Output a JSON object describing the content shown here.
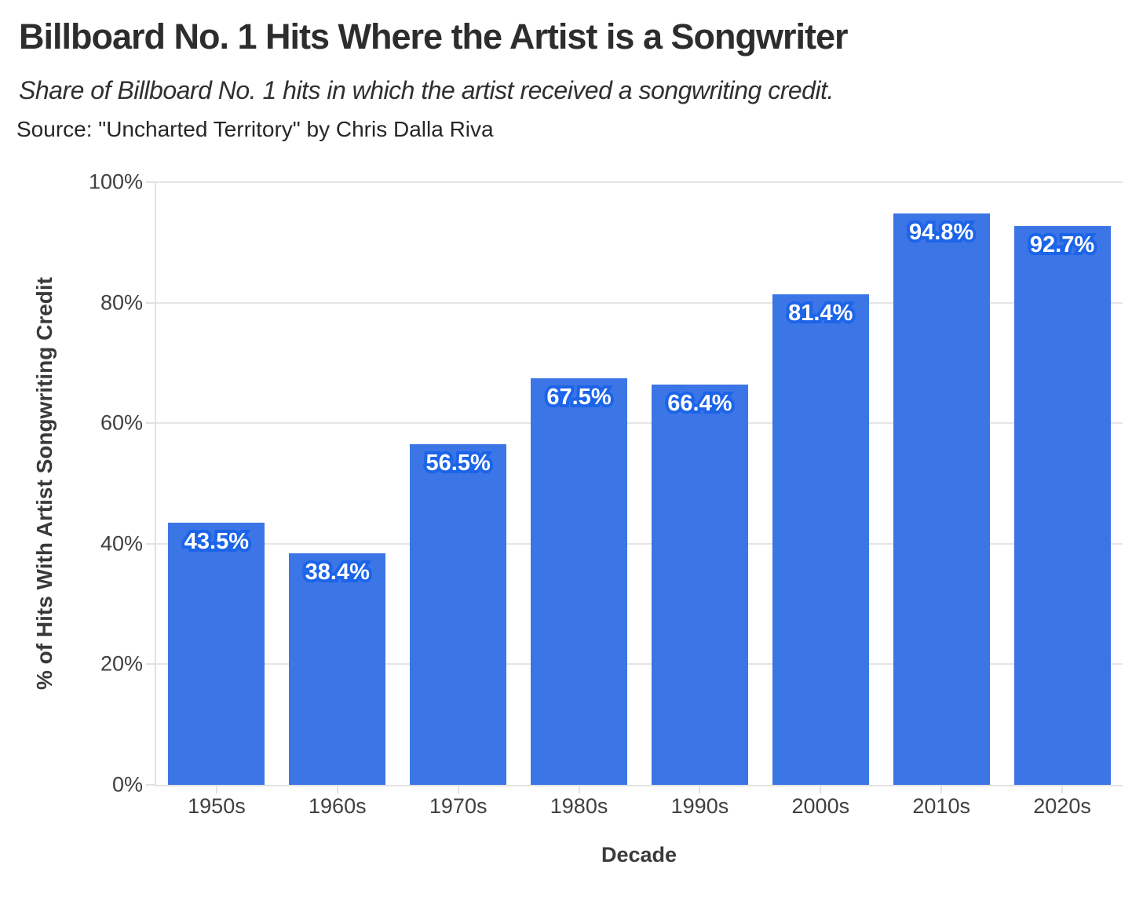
{
  "chart_data": {
    "type": "bar",
    "title": "Billboard No. 1 Hits Where the Artist is a Songwriter",
    "subtitle": "Share of Billboard No. 1 hits in which the artist received a songwriting credit.",
    "source_note": "Source: \"Uncharted Territory\" by Chris Dalla Riva",
    "xlabel": "Decade",
    "ylabel": "% of Hits With Artist Songwriting Credit",
    "categories": [
      "1950s",
      "1960s",
      "1970s",
      "1980s",
      "1990s",
      "2000s",
      "2010s",
      "2020s"
    ],
    "values": [
      43.5,
      38.4,
      56.5,
      67.5,
      66.4,
      81.4,
      94.8,
      92.7
    ],
    "value_labels": [
      "43.5%",
      "38.4%",
      "56.5%",
      "67.5%",
      "66.4%",
      "81.4%",
      "94.8%",
      "92.7%"
    ],
    "ylim": [
      0,
      100
    ],
    "yticks": [
      0,
      20,
      40,
      60,
      80,
      100
    ],
    "ytick_labels": [
      "0%",
      "20%",
      "40%",
      "60%",
      "80%",
      "100%"
    ],
    "grid": "horizontal",
    "legend": "none",
    "colors": {
      "bar_fill": "#3c75e6",
      "value_label_text": "#ffffff",
      "value_label_halo": "#1c64e8",
      "gridline": "#e5e5e5",
      "axis_line": "#e2e2e2",
      "tick_text": "#404040",
      "title_text": "#2d2d2d"
    }
  }
}
